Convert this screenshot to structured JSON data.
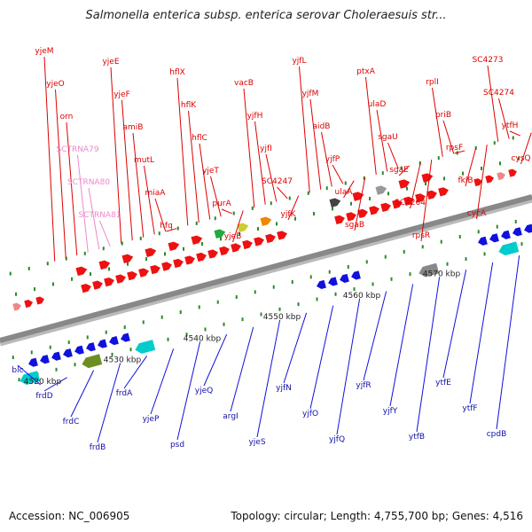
{
  "title": "Salmonella enterica subsp. enterica serovar Choleraesuis str...",
  "footer": {
    "accession": "Accession: NC_006905",
    "summary": "Topology: circular; Length: 4,755,700 bp; Genes: 4,516"
  },
  "scale": [
    "4520 kbp",
    "4530 kbp",
    "4540 kbp",
    "4550 kbp",
    "4560 kbp",
    "4570 kbp"
  ],
  "colors": {
    "forward": "#ee1111",
    "reverse": "#1111dd",
    "pink": "#ee88cc",
    "backbone": "#888888"
  },
  "top_labels": [
    {
      "t": "yjeM",
      "c": "#dd0000"
    },
    {
      "t": "yjeO",
      "c": "#dd0000"
    },
    {
      "t": "orn",
      "c": "#dd0000"
    },
    {
      "t": "SCTRNA79",
      "c": "#ee88cc"
    },
    {
      "t": "SCTRNA80",
      "c": "#ee88cc"
    },
    {
      "t": "SCTRNA81",
      "c": "#ee88cc"
    },
    {
      "t": "yjeE",
      "c": "#dd0000"
    },
    {
      "t": "yjeF",
      "c": "#dd0000"
    },
    {
      "t": "amiB",
      "c": "#dd0000"
    },
    {
      "t": "mutL",
      "c": "#dd0000"
    },
    {
      "t": "miaA",
      "c": "#dd0000"
    },
    {
      "t": "hfq",
      "c": "#dd0000"
    },
    {
      "t": "hflX",
      "c": "#dd0000"
    },
    {
      "t": "hflK",
      "c": "#dd0000"
    },
    {
      "t": "hflC",
      "c": "#dd0000"
    },
    {
      "t": "yjeT",
      "c": "#dd0000"
    },
    {
      "t": "purA",
      "c": "#dd0000"
    },
    {
      "t": "yjeB",
      "c": "#dd0000"
    },
    {
      "t": "vacB",
      "c": "#dd0000"
    },
    {
      "t": "yjfH",
      "c": "#dd0000"
    },
    {
      "t": "yjfI",
      "c": "#dd0000"
    },
    {
      "t": "SC4247",
      "c": "#dd0000"
    },
    {
      "t": "yjfK",
      "c": "#dd0000"
    },
    {
      "t": "yjfL",
      "c": "#dd0000"
    },
    {
      "t": "yjfM",
      "c": "#dd0000"
    },
    {
      "t": "aidB",
      "c": "#dd0000"
    },
    {
      "t": "yjfP",
      "c": "#dd0000"
    },
    {
      "t": "ulaA",
      "c": "#dd0000"
    },
    {
      "t": "sgaB",
      "c": "#dd0000"
    },
    {
      "t": "ptxA",
      "c": "#dd0000"
    },
    {
      "t": "ulaD",
      "c": "#dd0000"
    },
    {
      "t": "sgaU",
      "c": "#dd0000"
    },
    {
      "t": "sgaE",
      "c": "#dd0000"
    },
    {
      "t": "SC4264",
      "c": "#dd0000"
    },
    {
      "t": "rpsR",
      "c": "#dd0000"
    },
    {
      "t": "rplI",
      "c": "#dd0000"
    },
    {
      "t": "priB",
      "c": "#dd0000"
    },
    {
      "t": "rpsF",
      "c": "#dd0000"
    },
    {
      "t": "fklB",
      "c": "#dd0000"
    },
    {
      "t": "cycA",
      "c": "#dd0000"
    },
    {
      "t": "SC4273",
      "c": "#dd0000"
    },
    {
      "t": "SC4274",
      "c": "#dd0000"
    },
    {
      "t": "ytfH",
      "c": "#dd0000"
    },
    {
      "t": "cysQ",
      "c": "#dd0000"
    }
  ],
  "bottom_labels": [
    "blc",
    "frdD",
    "frdC",
    "frdB",
    "frdA",
    "yjeP",
    "psd",
    "yjeQ",
    "argI",
    "yjeS",
    "yjfN",
    "yjfO",
    "yjfQ",
    "yjfR",
    "yjfY",
    "ytfB",
    "ytfE",
    "ytfF",
    "cpdB"
  ]
}
